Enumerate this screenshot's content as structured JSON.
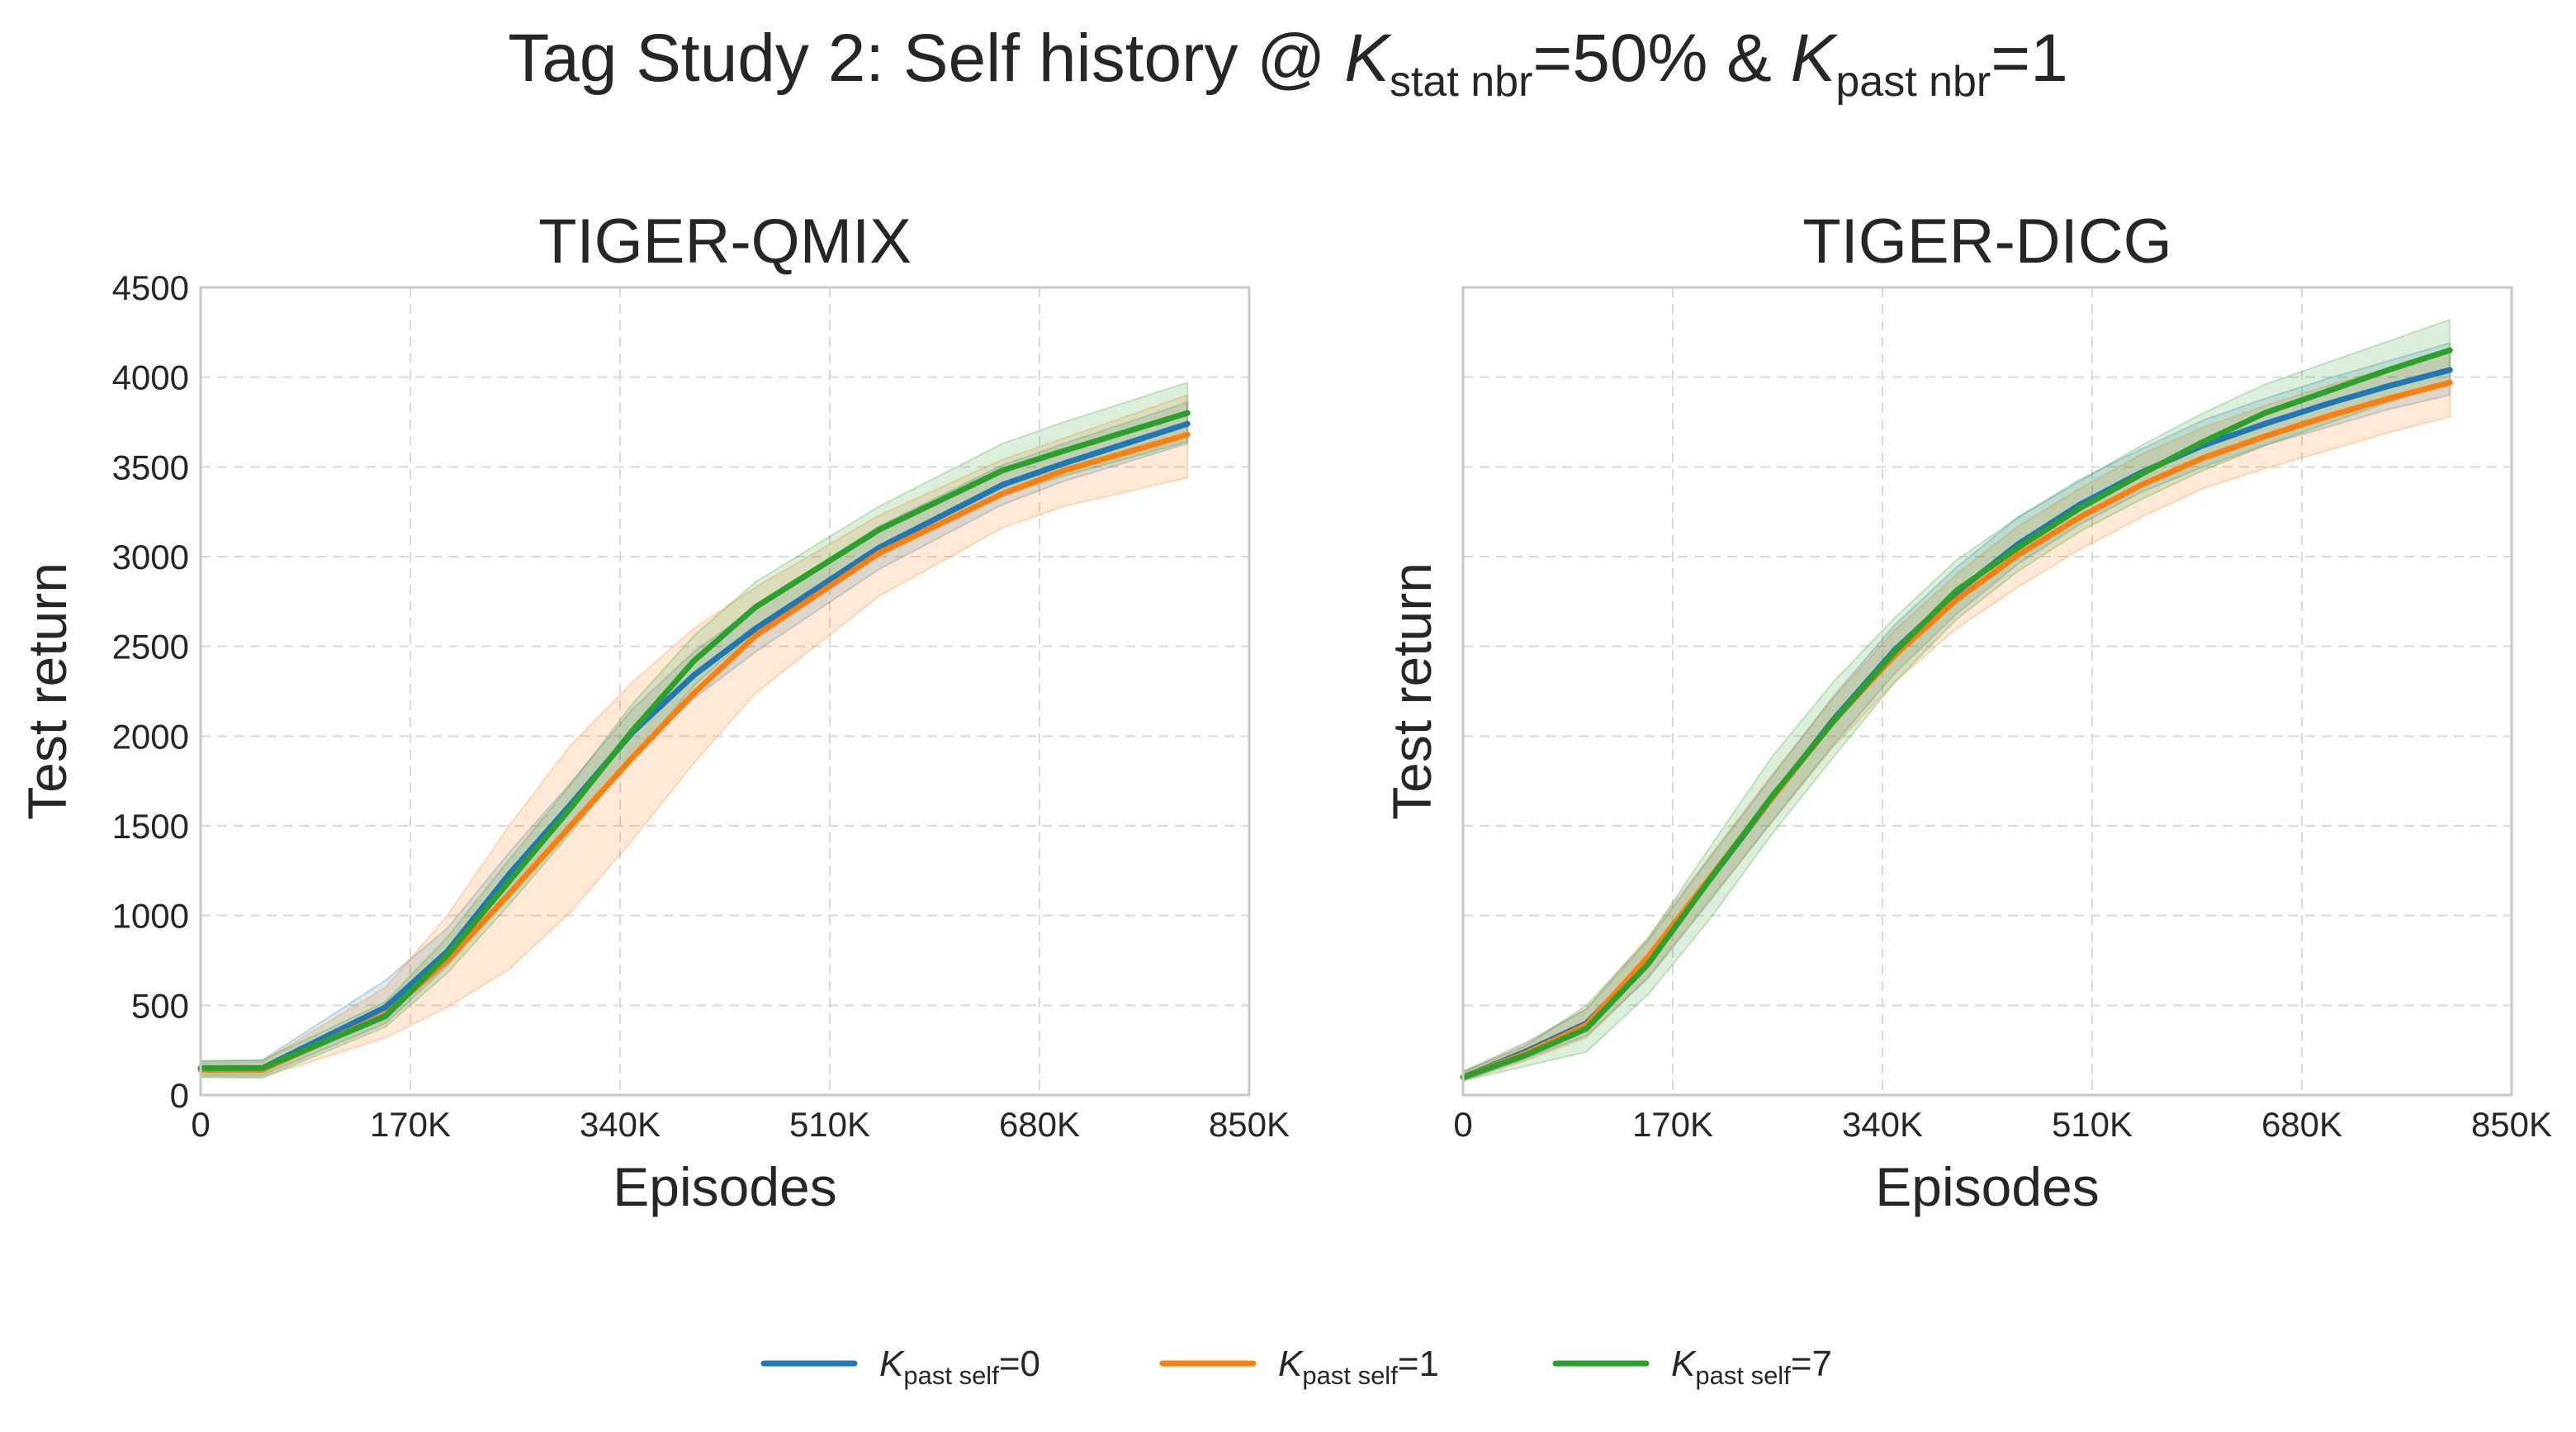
{
  "colors": {
    "blue": "#1f77b4",
    "orange": "#ff7f0e",
    "green": "#2ca02c"
  },
  "title": {
    "prefix": "Tag Study 2: Self history @ ",
    "k_symbol": "K",
    "stat_sub": "stat nbr",
    "stat_val": "=50% & ",
    "past_sub": "past nbr",
    "past_val": "=1"
  },
  "legend": {
    "symbol": "K",
    "sub": "past self",
    "entries": [
      {
        "value": "=0",
        "color": "#1f77b4"
      },
      {
        "value": "=1",
        "color": "#ff7f0e"
      },
      {
        "value": "=7",
        "color": "#2ca02c"
      }
    ]
  },
  "chart_data": [
    {
      "type": "line",
      "title": "TIGER-QMIX",
      "xlabel": "Episodes",
      "ylabel": "Test return",
      "xlim": [
        0,
        850000
      ],
      "ylim": [
        0,
        4500
      ],
      "xticks": [
        0,
        170000,
        340000,
        510000,
        680000,
        850000
      ],
      "xtick_labels": [
        "0",
        "170K",
        "340K",
        "510K",
        "680K",
        "850K"
      ],
      "yticks": [
        0,
        500,
        1000,
        1500,
        2000,
        2500,
        3000,
        3500,
        4000,
        4500
      ],
      "ytick_labels": [
        "0",
        "500",
        "1000",
        "1500",
        "2000",
        "2500",
        "3000",
        "3500",
        "4000",
        "4500"
      ],
      "x": [
        0,
        50000,
        150000,
        200000,
        250000,
        300000,
        350000,
        400000,
        450000,
        550000,
        650000,
        700000,
        800000
      ],
      "series": [
        {
          "name": "K_past self=0",
          "color": "#1f77b4",
          "values": [
            150,
            150,
            490,
            800,
            1230,
            1620,
            2020,
            2340,
            2600,
            3050,
            3400,
            3520,
            3740
          ],
          "lower": [
            110,
            110,
            400,
            720,
            1120,
            1500,
            1890,
            2210,
            2470,
            2930,
            3290,
            3420,
            3630
          ],
          "upper": [
            190,
            195,
            640,
            930,
            1350,
            1740,
            2150,
            2470,
            2720,
            3170,
            3510,
            3630,
            3860
          ]
        },
        {
          "name": "K_past self=1",
          "color": "#ff7f0e",
          "values": [
            140,
            140,
            450,
            750,
            1120,
            1500,
            1880,
            2240,
            2560,
            3020,
            3350,
            3480,
            3680
          ],
          "lower": [
            100,
            100,
            320,
            490,
            700,
            1020,
            1420,
            1850,
            2240,
            2780,
            3160,
            3280,
            3440
          ],
          "upper": [
            180,
            185,
            600,
            1000,
            1500,
            1950,
            2300,
            2600,
            2830,
            3230,
            3540,
            3660,
            3900
          ]
        },
        {
          "name": "K_past self=7",
          "color": "#2ca02c",
          "values": [
            150,
            150,
            440,
            780,
            1190,
            1600,
            2030,
            2420,
            2720,
            3150,
            3480,
            3590,
            3800
          ],
          "lower": [
            100,
            95,
            380,
            680,
            1060,
            1460,
            1880,
            2280,
            2590,
            3010,
            3340,
            3450,
            3640
          ],
          "upper": [
            190,
            195,
            520,
            880,
            1310,
            1730,
            2180,
            2560,
            2860,
            3280,
            3630,
            3750,
            3970
          ]
        }
      ]
    },
    {
      "type": "line",
      "title": "TIGER-DICG",
      "xlabel": "Episodes",
      "ylabel": "Test return",
      "xlim": [
        0,
        850000
      ],
      "ylim": [
        0,
        4500
      ],
      "xticks": [
        0,
        170000,
        340000,
        510000,
        680000,
        850000
      ],
      "xtick_labels": [
        "0",
        "170K",
        "340K",
        "510K",
        "680K",
        "850K"
      ],
      "yticks": [
        0,
        500,
        1000,
        1500,
        2000,
        2500,
        3000,
        3500,
        4000,
        4500
      ],
      "x": [
        0,
        50000,
        100000,
        150000,
        200000,
        250000,
        300000,
        350000,
        400000,
        450000,
        500000,
        550000,
        600000,
        650000,
        700000,
        750000,
        800000
      ],
      "series": [
        {
          "name": "K_past self=0",
          "color": "#1f77b4",
          "values": [
            100,
            240,
            400,
            750,
            1200,
            1650,
            2090,
            2480,
            2800,
            3070,
            3290,
            3470,
            3620,
            3740,
            3850,
            3950,
            4040
          ],
          "lower": [
            80,
            200,
            330,
            650,
            1080,
            1520,
            1950,
            2350,
            2680,
            2960,
            3180,
            3360,
            3500,
            3620,
            3720,
            3820,
            3900
          ],
          "upper": [
            130,
            290,
            480,
            860,
            1320,
            1770,
            2220,
            2620,
            2940,
            3220,
            3430,
            3600,
            3760,
            3880,
            3990,
            4090,
            4190
          ]
        },
        {
          "name": "K_past self=1",
          "color": "#ff7f0e",
          "values": [
            100,
            230,
            390,
            770,
            1210,
            1650,
            2080,
            2450,
            2760,
            3010,
            3220,
            3400,
            3550,
            3670,
            3780,
            3880,
            3970
          ],
          "lower": [
            80,
            190,
            320,
            660,
            1090,
            1520,
            1940,
            2300,
            2600,
            2830,
            3040,
            3220,
            3380,
            3490,
            3590,
            3690,
            3780
          ],
          "upper": [
            130,
            280,
            480,
            880,
            1330,
            1780,
            2210,
            2590,
            2900,
            3170,
            3380,
            3570,
            3720,
            3840,
            3950,
            4050,
            4150
          ]
        },
        {
          "name": "K_past self=7",
          "color": "#2ca02c",
          "values": [
            100,
            220,
            370,
            730,
            1200,
            1660,
            2080,
            2470,
            2810,
            3050,
            3270,
            3460,
            3640,
            3800,
            3920,
            4040,
            4150
          ],
          "lower": [
            80,
            160,
            240,
            560,
            980,
            1450,
            1880,
            2300,
            2650,
            2920,
            3140,
            3320,
            3480,
            3620,
            3740,
            3860,
            3970
          ],
          "upper": [
            130,
            270,
            500,
            870,
            1380,
            1880,
            2300,
            2660,
            2980,
            3220,
            3420,
            3620,
            3800,
            3960,
            4080,
            4200,
            4320
          ]
        }
      ]
    }
  ]
}
